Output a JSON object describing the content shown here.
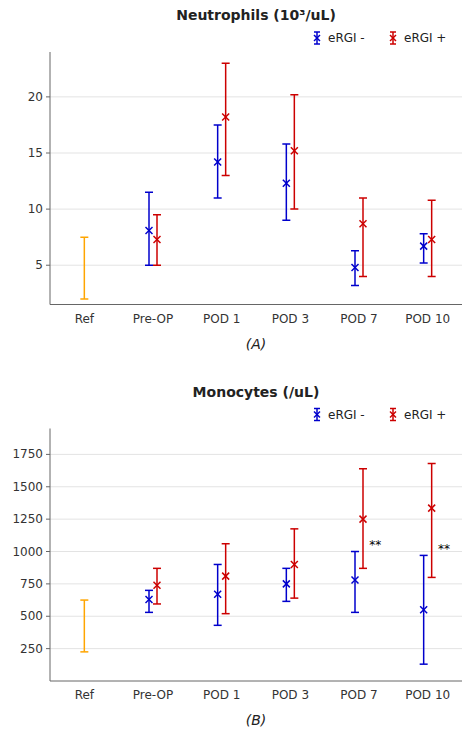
{
  "chart_data": [
    {
      "type": "errorbar",
      "title": "Neutrophils (10³/uL)",
      "xlabel": "(A)",
      "categories": [
        "Ref",
        "Pre-OP",
        "POD 1",
        "POD 3",
        "POD 7",
        "POD 10"
      ],
      "series": [
        {
          "color": "#FFA500",
          "marker": "none",
          "values": [
            7.5,
            null,
            null,
            null,
            null,
            null
          ],
          "lows": [
            2.0,
            null,
            null,
            null,
            null,
            null
          ],
          "highs": [
            7.5,
            null,
            null,
            null,
            null,
            null
          ]
        },
        {
          "name": "eRGI -",
          "color": "#0000CC",
          "marker": "x",
          "values": [
            null,
            8.1,
            14.2,
            12.3,
            4.8,
            6.7
          ],
          "lows": [
            null,
            5.0,
            11.0,
            9.0,
            3.2,
            5.2
          ],
          "highs": [
            null,
            11.5,
            17.5,
            15.8,
            6.3,
            7.8
          ]
        },
        {
          "name": "eRGI +",
          "color": "#CC0000",
          "marker": "x",
          "values": [
            null,
            7.3,
            18.2,
            15.2,
            8.7,
            7.3
          ],
          "lows": [
            null,
            5.0,
            13.0,
            10.0,
            4.0,
            4.0
          ],
          "highs": [
            null,
            9.5,
            23.0,
            20.2,
            11.0,
            10.8
          ]
        }
      ],
      "ylim": [
        1.5,
        24
      ],
      "yticks": [
        5,
        10,
        15,
        20
      ],
      "grid": true,
      "legend": "upper right"
    },
    {
      "type": "errorbar",
      "title": "Monocytes (/uL)",
      "xlabel": "(B)",
      "categories": [
        "Ref",
        "Pre-OP",
        "POD 1",
        "POD 3",
        "POD 7",
        "POD 10"
      ],
      "series": [
        {
          "color": "#FFA500",
          "marker": "none",
          "values": [
            600,
            null,
            null,
            null,
            null,
            null
          ],
          "lows": [
            225,
            null,
            null,
            null,
            null,
            null
          ],
          "highs": [
            625,
            null,
            null,
            null,
            null,
            null
          ]
        },
        {
          "name": "eRGI -",
          "color": "#0000CC",
          "marker": "x",
          "values": [
            null,
            630,
            670,
            750,
            780,
            550
          ],
          "lows": [
            null,
            530,
            430,
            615,
            530,
            130
          ],
          "highs": [
            null,
            700,
            900,
            870,
            1000,
            970
          ]
        },
        {
          "name": "eRGI +",
          "color": "#CC0000",
          "marker": "x",
          "values": [
            null,
            740,
            810,
            900,
            1250,
            1335
          ],
          "lows": [
            null,
            595,
            520,
            640,
            870,
            800
          ],
          "highs": [
            null,
            870,
            1060,
            1175,
            1640,
            1680
          ]
        }
      ],
      "annotations": [
        {
          "text": "**",
          "category": "POD 7",
          "y": 1010
        },
        {
          "text": "**",
          "category": "POD 10",
          "y": 979.7
        }
      ],
      "ylim": [
        0,
        1950
      ],
      "yticks": [
        250,
        500,
        750,
        1000,
        1250,
        1500,
        1750
      ],
      "grid": true,
      "legend": "upper right"
    }
  ]
}
